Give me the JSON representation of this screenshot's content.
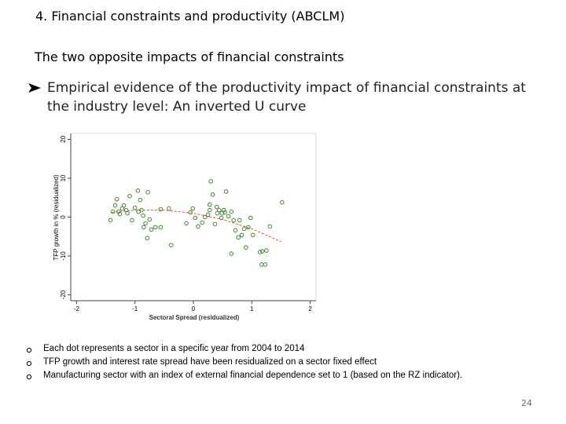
{
  "header": {
    "title": "4. Financial constraints and productivity (ABCLM)",
    "subtitle": "The two opposite impacts of financial constraints"
  },
  "bullet": "Empirical evidence of the productivity impact of financial constraints at the industry level: An inverted U curve",
  "notes": [
    "Each dot represents a sector in a specific year from 2004 to 2014",
    "TFP growth and interest rate spread have been residualized on a sector fixed effect",
    "Manufacturing sector with an index of external financial dependence set to 1 (based on the RZ indicator)."
  ],
  "page_number": "24",
  "chart_data": {
    "type": "scatter",
    "x_label": "Sectoral Spread (residualized)",
    "y_label": "TFP growth in % (residualized)",
    "xlim": [
      -2.1,
      2.1
    ],
    "ylim": [
      -21.5,
      21.5
    ],
    "xticks": [
      -2,
      -1,
      0,
      1,
      2
    ],
    "yticks": [
      -20,
      -10,
      0,
      10,
      20
    ],
    "color": "#3f8a2e",
    "x": [
      -1.42,
      -1.38,
      -1.34,
      -1.31,
      -1.28,
      -1.26,
      -1.22,
      -1.19,
      -1.15,
      -1.13,
      -1.09,
      -1.05,
      -1.0,
      -0.95,
      -0.94,
      -0.91,
      -0.89,
      -0.86,
      -0.85,
      -0.82,
      -0.79,
      -0.78,
      -0.75,
      -0.72,
      -0.65,
      -0.56,
      -0.56,
      -0.42,
      -0.38,
      -0.12,
      -0.05,
      -0.01,
      0.03,
      0.08,
      0.15,
      0.2,
      0.25,
      0.28,
      0.3,
      0.28,
      0.33,
      0.37,
      0.4,
      0.41,
      0.44,
      0.48,
      0.49,
      0.52,
      0.54,
      0.56,
      0.6,
      0.65,
      0.65,
      0.69,
      0.72,
      0.77,
      0.79,
      0.83,
      0.87,
      0.9,
      0.94,
      0.98,
      1.02,
      1.14,
      1.17,
      1.18,
      1.23,
      1.25,
      1.31,
      1.52
    ],
    "values": [
      -0.8,
      1.4,
      3,
      4.6,
      1.4,
      0.8,
      2.2,
      3,
      1.8,
      1,
      5.4,
      -0.8,
      2.4,
      6.8,
      1.4,
      4.4,
      1.8,
      0.4,
      -2.6,
      -1.6,
      -5.4,
      6.4,
      -0.6,
      -3.2,
      -2.6,
      -2.6,
      2,
      2.2,
      -7.2,
      -1.6,
      1.2,
      2.2,
      -0.2,
      -2.4,
      -1.4,
      0,
      0.6,
      3.2,
      9.2,
      1.8,
      5.8,
      -1.8,
      2.6,
      1,
      1.8,
      -0.2,
      1,
      1.8,
      1.2,
      6.6,
      0.2,
      1.4,
      -9.4,
      -0.8,
      -3.4,
      -5.2,
      -0.8,
      -4.6,
      -3,
      -7.8,
      -2.6,
      -0.2,
      -4.6,
      -9,
      -12.2,
      -8.8,
      -12.2,
      -8.6,
      -2.4,
      3.8
    ],
    "fit": {
      "color": "#d9542c",
      "x": [
        -1.4,
        -1,
        -0.5,
        0,
        0.5,
        1,
        1.5
      ],
      "values": [
        1.2,
        1.8,
        1.8,
        1,
        -0.6,
        -3,
        -6.3
      ]
    }
  }
}
